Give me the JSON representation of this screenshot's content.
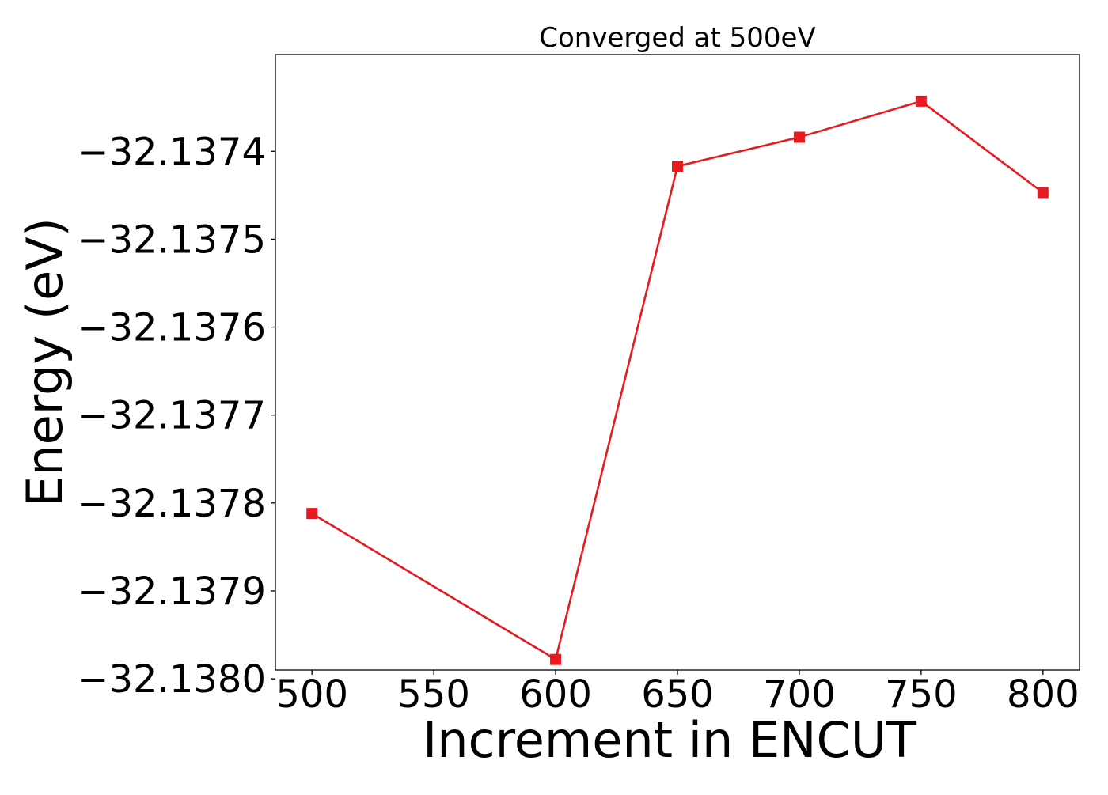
{
  "chart_data": {
    "type": "line",
    "title": "Converged at 500eV",
    "xlabel": "Increment in ENCUT",
    "ylabel": "Energy (eV)",
    "x": [
      500,
      600,
      650,
      700,
      750,
      800
    ],
    "series": [
      {
        "values": [
          -32.137812,
          -32.137978,
          -32.137417,
          -32.137384,
          -32.137343,
          -32.137447
        ],
        "color": "#e8191f",
        "marker": "square"
      }
    ],
    "xlim": [
      485,
      815
    ],
    "ylim": [
      -32.13799,
      -32.13729
    ],
    "xticks": [
      500,
      550,
      600,
      650,
      700,
      750,
      800
    ],
    "yticks": [
      -32.138,
      -32.1379,
      -32.1378,
      -32.1377,
      -32.1376,
      -32.1375,
      -32.1374
    ],
    "xtick_labels": [
      "500",
      "550",
      "600",
      "650",
      "700",
      "750",
      "800"
    ],
    "ytick_labels": [
      "−32.1380",
      "−32.1379",
      "−32.1378",
      "−32.1377",
      "−32.1376",
      "−32.1375",
      "−32.1374"
    ],
    "grid": false,
    "legend": "none"
  }
}
